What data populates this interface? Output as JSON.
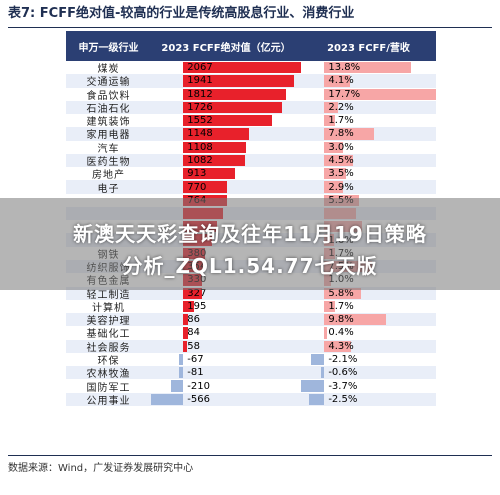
{
  "title": "表7: FCFF绝对值-较高的行业是传统高股息行业、消费行业",
  "headers": [
    "申万一级行业",
    "2023 FCFF绝对值（亿元）",
    "2023 FCFF/营收"
  ],
  "rows": [
    {
      "industry": "煤炭",
      "fcff": "2067",
      "ratio": "13.8%",
      "fcff_v": 2067,
      "ratio_v": 13.8
    },
    {
      "industry": "交通运输",
      "fcff": "1941",
      "ratio": "4.1%",
      "fcff_v": 1941,
      "ratio_v": 4.1
    },
    {
      "industry": "食品饮料",
      "fcff": "1812",
      "ratio": "17.7%",
      "fcff_v": 1812,
      "ratio_v": 17.7
    },
    {
      "industry": "石油石化",
      "fcff": "1726",
      "ratio": "2.2%",
      "fcff_v": 1726,
      "ratio_v": 2.2
    },
    {
      "industry": "建筑装饰",
      "fcff": "1552",
      "ratio": "1.7%",
      "fcff_v": 1552,
      "ratio_v": 1.7
    },
    {
      "industry": "家用电器",
      "fcff": "1148",
      "ratio": "7.8%",
      "fcff_v": 1148,
      "ratio_v": 7.8
    },
    {
      "industry": "汽车",
      "fcff": "1108",
      "ratio": "3.0%",
      "fcff_v": 1108,
      "ratio_v": 3.0
    },
    {
      "industry": "医药生物",
      "fcff": "1082",
      "ratio": "4.5%",
      "fcff_v": 1082,
      "ratio_v": 4.5
    },
    {
      "industry": "房地产",
      "fcff": "913",
      "ratio": "3.5%",
      "fcff_v": 913,
      "ratio_v": 3.5
    },
    {
      "industry": "电子",
      "fcff": "770",
      "ratio": "2.9%",
      "fcff_v": 770,
      "ratio_v": 2.9
    },
    {
      "industry": "",
      "fcff": "764",
      "ratio": "5.5%",
      "fcff_v": 764,
      "ratio_v": 5.5
    },
    {
      "industry": "",
      "fcff": "",
      "ratio": "",
      "fcff_v": 700,
      "ratio_v": 5.0
    },
    {
      "industry": "",
      "fcff": "",
      "ratio": "",
      "fcff_v": 600,
      "ratio_v": 6.0
    },
    {
      "industry": "",
      "fcff": "",
      "ratio": "1.6%",
      "fcff_v": 500,
      "ratio_v": 1.6
    },
    {
      "industry": "钢铁",
      "fcff": "380",
      "ratio": "1.7%",
      "fcff_v": 380,
      "ratio_v": 1.7
    },
    {
      "industry": "纺织服饰",
      "fcff": "354",
      "ratio": "7.5%",
      "fcff_v": 354,
      "ratio_v": 7.5
    },
    {
      "industry": "有色金属",
      "fcff": "330",
      "ratio": "1.0%",
      "fcff_v": 330,
      "ratio_v": 1.0
    },
    {
      "industry": "轻工制造",
      "fcff": "327",
      "ratio": "5.8%",
      "fcff_v": 327,
      "ratio_v": 5.8
    },
    {
      "industry": "计算机",
      "fcff": "195",
      "ratio": "1.7%",
      "fcff_v": 195,
      "ratio_v": 1.7
    },
    {
      "industry": "美容护理",
      "fcff": "86",
      "ratio": "9.8%",
      "fcff_v": 86,
      "ratio_v": 9.8
    },
    {
      "industry": "基础化工",
      "fcff": "84",
      "ratio": "0.4%",
      "fcff_v": 84,
      "ratio_v": 0.4
    },
    {
      "industry": "社会服务",
      "fcff": "58",
      "ratio": "4.3%",
      "fcff_v": 58,
      "ratio_v": 4.3
    },
    {
      "industry": "环保",
      "fcff": "-67",
      "ratio": "-2.1%",
      "fcff_v": -67,
      "ratio_v": -2.1
    },
    {
      "industry": "农林牧渔",
      "fcff": "-81",
      "ratio": "-0.6%",
      "fcff_v": -81,
      "ratio_v": -0.6
    },
    {
      "industry": "国防军工",
      "fcff": "-210",
      "ratio": "-3.7%",
      "fcff_v": -210,
      "ratio_v": -3.7
    },
    {
      "industry": "公用事业",
      "fcff": "-566",
      "ratio": "-2.5%",
      "fcff_v": -566,
      "ratio_v": -2.5
    }
  ],
  "footer": "数据来源：Wind，广发证券发展研究中心",
  "overlay": {
    "line1": "新澳天天彩查询及往年11月19日策略",
    "line2": "分析_ZQL1.54.77七天版"
  },
  "colors": {
    "header": "#2b3f73",
    "red": "#e8212b",
    "pink": "#f7a6a6",
    "blue": "#9fb6dc"
  }
}
